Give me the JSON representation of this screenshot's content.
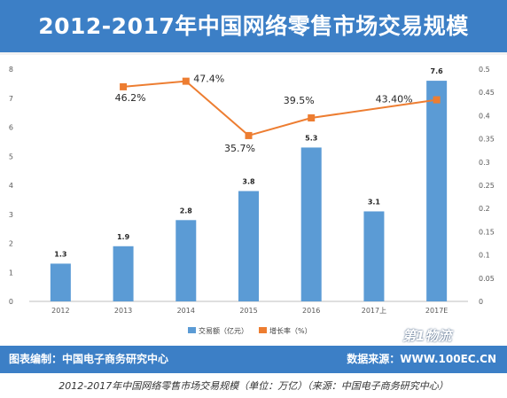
{
  "header": {
    "title": "2012-2017年中国网络零售市场交易规模"
  },
  "footer": {
    "left_text": "图表编制：中国电子商务研究中心",
    "right_text": "数据来源：WWW.100EC.CN",
    "watermark": "第1物流"
  },
  "caption": "2012-2017年中国网络零售市场交易规模（单位：万亿）（来源：中国电子商务研究中心）",
  "colors": {
    "bar": "#5b9bd5",
    "line": "#ed7d31",
    "header_bg": "#3c7fc6"
  },
  "chart_data": {
    "type": "bar",
    "categories": [
      "2012",
      "2013",
      "2014",
      "2015",
      "2016",
      "2017上",
      "2017E"
    ],
    "series": [
      {
        "name": "交易额（亿元）",
        "type": "bar",
        "axis": "left",
        "values": [
          1.3,
          1.9,
          2.8,
          3.8,
          5.3,
          3.1,
          7.6
        ],
        "labels": [
          "1.3",
          "1.9",
          "2.8",
          "3.8",
          "5.3",
          "3.1",
          "7.6"
        ]
      },
      {
        "name": "增长率（%）",
        "type": "line",
        "axis": "right",
        "values": [
          null,
          0.462,
          0.474,
          0.357,
          0.395,
          null,
          0.434
        ],
        "labels": [
          "",
          "46.2%",
          "47.4%",
          "35.7%",
          "39.5%",
          "",
          "43.40%"
        ]
      }
    ],
    "ylim": [
      0,
      8
    ],
    "y2lim": [
      0,
      0.5
    ],
    "yticks": [
      "0",
      "1",
      "2",
      "3",
      "4",
      "5",
      "6",
      "7",
      "8"
    ],
    "y2ticks": [
      "0",
      "0.05",
      "0.1",
      "0.15",
      "0.2",
      "0.25",
      "0.3",
      "0.35",
      "0.4",
      "0.45",
      "0.5"
    ],
    "legend_position": "bottom",
    "grid": false
  }
}
